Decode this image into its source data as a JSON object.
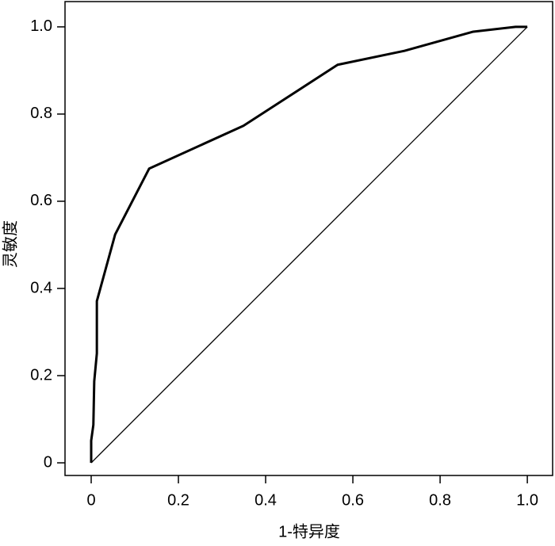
{
  "chart_data": {
    "type": "line",
    "x_label": "1-特异度",
    "y_label": "灵敏度",
    "xlim": [
      -0.06,
      1.058
    ],
    "ylim": [
      -0.029,
      1.058
    ],
    "xticks": [
      0,
      0.2,
      0.4,
      0.6,
      0.8,
      {
        "value": 1,
        "label": "1.0"
      }
    ],
    "yticks": [
      0,
      0.2,
      0.4,
      0.6,
      0.8,
      {
        "value": 1,
        "label": "1.0"
      }
    ],
    "series": [
      {
        "color": "#000000",
        "x": [
          0,
          0,
          0.005,
          0.007,
          0.013,
          0.013,
          0.055,
          0.133,
          0.349,
          0.565,
          0.718,
          0.876,
          0.973,
          1
        ],
        "values": [
          0,
          0.051,
          0.087,
          0.187,
          0.251,
          0.371,
          0.524,
          0.675,
          0.773,
          0.913,
          0.945,
          0.989,
          1,
          1
        ]
      },
      {
        "color": "#000000",
        "x": [
          0,
          1
        ],
        "values": [
          0,
          1
        ]
      }
    ]
  }
}
